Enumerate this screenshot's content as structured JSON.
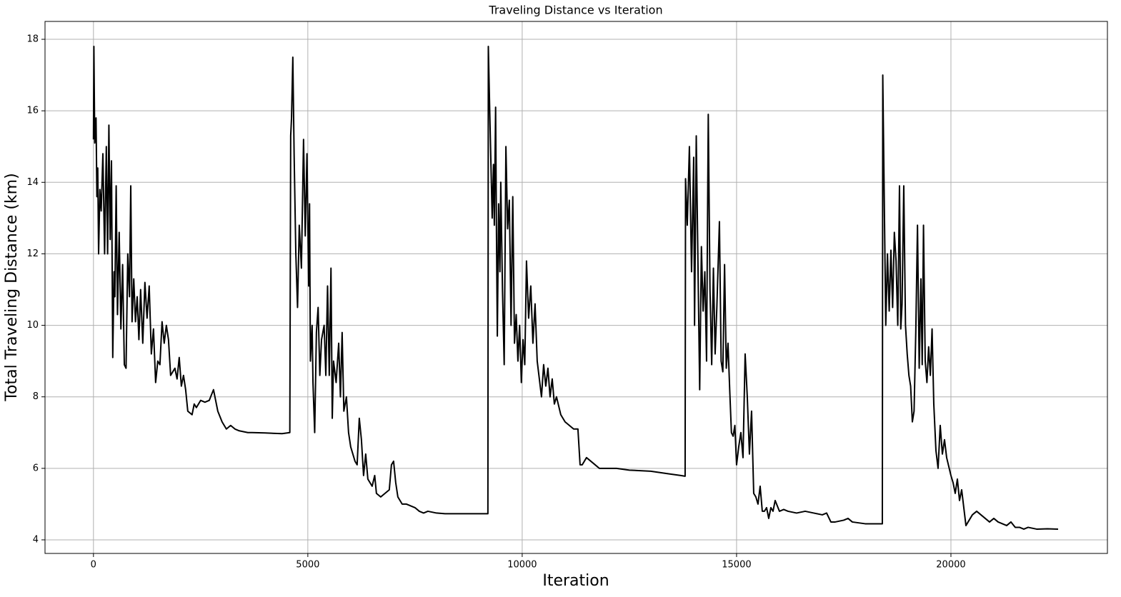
{
  "chart_data": {
    "type": "line",
    "title": "Traveling Distance vs Iteration",
    "xlabel": "Iteration",
    "ylabel": "Total Traveling Distance (km)",
    "xlim": [
      -1130,
      23650
    ],
    "ylim": [
      3.62,
      18.5
    ],
    "xticks": [
      0,
      5000,
      10000,
      15000,
      20000
    ],
    "yticks": [
      4,
      6,
      8,
      10,
      12,
      14,
      16,
      18
    ],
    "grid": true,
    "x": [
      0,
      10,
      30,
      60,
      80,
      100,
      120,
      150,
      180,
      220,
      260,
      300,
      330,
      360,
      390,
      420,
      450,
      480,
      500,
      530,
      560,
      600,
      640,
      680,
      720,
      760,
      800,
      840,
      870,
      900,
      940,
      980,
      1020,
      1060,
      1100,
      1150,
      1200,
      1250,
      1300,
      1350,
      1400,
      1450,
      1500,
      1550,
      1600,
      1650,
      1700,
      1750,
      1800,
      1900,
      1950,
      2000,
      2050,
      2100,
      2150,
      2200,
      2300,
      2350,
      2400,
      2500,
      2600,
      2700,
      2800,
      2850,
      2900,
      3000,
      3100,
      3200,
      3300,
      3400,
      3600,
      3700,
      4000,
      4400,
      4580,
      4600,
      4620,
      4650,
      4680,
      4720,
      4760,
      4800,
      4850,
      4900,
      4940,
      4980,
      5020,
      5040,
      5060,
      5100,
      5120,
      5160,
      5200,
      5240,
      5280,
      5320,
      5380,
      5420,
      5460,
      5500,
      5540,
      5570,
      5600,
      5660,
      5720,
      5760,
      5800,
      5840,
      5900,
      5950,
      6000,
      6050,
      6100,
      6150,
      6200,
      6250,
      6300,
      6350,
      6400,
      6450,
      6500,
      6560,
      6600,
      6700,
      6800,
      6900,
      6950,
      7000,
      7050,
      7100,
      7200,
      7300,
      7400,
      7500,
      7600,
      7700,
      7800,
      8000,
      8200,
      8800,
      9200,
      9210,
      9250,
      9300,
      9330,
      9350,
      9380,
      9400,
      9420,
      9450,
      9480,
      9500,
      9540,
      9580,
      9620,
      9660,
      9700,
      9740,
      9780,
      9820,
      9860,
      9900,
      9940,
      9980,
      10020,
      10060,
      10100,
      10150,
      10200,
      10250,
      10300,
      10350,
      10400,
      10450,
      10500,
      10550,
      10600,
      10650,
      10700,
      10750,
      10800,
      10900,
      11000,
      11100,
      11200,
      11300,
      11350,
      11400,
      11500,
      11600,
      11700,
      11800,
      12000,
      12200,
      12500,
      13000,
      13400,
      13700,
      13800,
      13810,
      13850,
      13900,
      13950,
      14000,
      14020,
      14060,
      14100,
      14140,
      14180,
      14220,
      14260,
      14300,
      14340,
      14380,
      14420,
      14460,
      14500,
      14540,
      14600,
      14640,
      14680,
      14720,
      14760,
      14800,
      14840,
      14880,
      14920,
      14960,
      15000,
      15050,
      15100,
      15150,
      15200,
      15250,
      15300,
      15350,
      15400,
      15450,
      15500,
      15550,
      15600,
      15650,
      15700,
      15750,
      15800,
      15850,
      15900,
      16000,
      16100,
      16200,
      16400,
      16600,
      16800,
      17000,
      17100,
      17200,
      17300,
      17500,
      17600,
      17700,
      18000,
      18400,
      18410,
      18450,
      18480,
      18520,
      18560,
      18600,
      18640,
      18680,
      18720,
      18760,
      18800,
      18830,
      18860,
      18900,
      18940,
      18980,
      19020,
      19060,
      19100,
      19140,
      19180,
      19220,
      19260,
      19300,
      19330,
      19360,
      19400,
      19440,
      19480,
      19520,
      19560,
      19600,
      19650,
      19700,
      19750,
      19800,
      19850,
      19900,
      20000,
      20050,
      20100,
      20150,
      20200,
      20250,
      20300,
      20350,
      20400,
      20500,
      20600,
      20700,
      20800,
      20900,
      21000,
      21100,
      21200,
      21300,
      21400,
      21500,
      21600,
      21700,
      21800,
      22000,
      22250,
      22500
    ],
    "series": [
      {
        "color": "#000000",
        "values": [
          15.2,
          17.8,
          15.1,
          15.8,
          13.6,
          14.4,
          12.0,
          13.8,
          13.2,
          14.8,
          12.0,
          15.0,
          12.0,
          15.6,
          12.4,
          14.6,
          9.1,
          11.5,
          10.8,
          13.9,
          10.3,
          12.6,
          9.9,
          11.7,
          8.9,
          8.8,
          12.0,
          10.8,
          13.9,
          10.1,
          11.3,
          10.1,
          10.8,
          9.6,
          11.0,
          9.5,
          11.2,
          10.2,
          11.1,
          9.2,
          9.9,
          8.4,
          9.0,
          8.9,
          10.1,
          9.5,
          10.0,
          9.6,
          8.6,
          8.8,
          8.5,
          9.1,
          8.3,
          8.6,
          8.2,
          7.6,
          7.5,
          7.8,
          7.7,
          7.9,
          7.85,
          7.9,
          8.2,
          7.9,
          7.6,
          7.3,
          7.1,
          7.2,
          7.1,
          7.05,
          7.0,
          7.0,
          6.99,
          6.97,
          7.0,
          15.3,
          15.8,
          17.5,
          14.8,
          12.0,
          10.5,
          12.8,
          11.6,
          15.2,
          12.5,
          14.8,
          11.1,
          13.4,
          9.0,
          10.0,
          8.4,
          7.0,
          9.8,
          10.5,
          8.6,
          9.6,
          10.0,
          8.6,
          11.1,
          8.6,
          11.6,
          7.4,
          9.0,
          8.4,
          9.5,
          8.0,
          9.8,
          7.6,
          8.0,
          7.0,
          6.6,
          6.4,
          6.2,
          6.1,
          7.4,
          6.8,
          5.8,
          6.4,
          5.7,
          5.6,
          5.5,
          5.8,
          5.3,
          5.2,
          5.3,
          5.4,
          6.1,
          6.2,
          5.6,
          5.2,
          5.0,
          5.0,
          4.95,
          4.9,
          4.8,
          4.75,
          4.8,
          4.75,
          4.73,
          4.73,
          4.73,
          17.8,
          15.6,
          13.0,
          14.5,
          12.8,
          16.1,
          12.6,
          9.7,
          13.4,
          11.5,
          14.0,
          11.0,
          8.9,
          15.0,
          12.7,
          13.5,
          10.0,
          13.6,
          9.5,
          10.3,
          9.0,
          10.0,
          8.4,
          9.6,
          8.9,
          11.8,
          10.2,
          11.1,
          9.5,
          10.6,
          9.0,
          8.5,
          8.0,
          8.9,
          8.3,
          8.8,
          8.0,
          8.5,
          7.8,
          8.0,
          7.5,
          7.3,
          7.2,
          7.1,
          7.1,
          6.1,
          6.1,
          6.3,
          6.2,
          6.1,
          6.0,
          6.0,
          6.0,
          5.95,
          5.92,
          5.85,
          5.8,
          5.78,
          14.1,
          12.8,
          15.0,
          11.5,
          14.7,
          10.0,
          15.3,
          11.7,
          8.2,
          12.2,
          10.4,
          11.5,
          9.0,
          15.9,
          11.0,
          8.9,
          11.6,
          9.2,
          10.5,
          12.9,
          9.0,
          8.7,
          11.7,
          8.8,
          9.5,
          8.2,
          7.0,
          6.9,
          7.2,
          6.1,
          6.6,
          7.0,
          6.3,
          9.2,
          8.0,
          6.4,
          7.6,
          5.3,
          5.2,
          5.0,
          5.5,
          4.8,
          4.8,
          4.9,
          4.6,
          4.9,
          4.8,
          5.1,
          4.8,
          4.85,
          4.8,
          4.75,
          4.8,
          4.75,
          4.7,
          4.75,
          4.5,
          4.5,
          4.55,
          4.6,
          4.5,
          4.45,
          4.45,
          17.0,
          13.0,
          10.0,
          12.0,
          10.4,
          12.1,
          10.5,
          12.6,
          11.8,
          10.0,
          13.9,
          9.9,
          10.6,
          13.9,
          10.0,
          9.2,
          8.6,
          8.3,
          7.3,
          7.6,
          9.8,
          12.8,
          8.8,
          11.3,
          8.9,
          12.8,
          9.0,
          8.4,
          9.4,
          8.6,
          9.9,
          7.8,
          6.5,
          6.0,
          7.2,
          6.4,
          6.8,
          6.3,
          5.8,
          5.6,
          5.3,
          5.7,
          5.1,
          5.4,
          4.9,
          4.4,
          4.5,
          4.7,
          4.8,
          4.7,
          4.6,
          4.5,
          4.6,
          4.5,
          4.45,
          4.4,
          4.5,
          4.35,
          4.35,
          4.3,
          4.35,
          4.3,
          4.31,
          4.3
        ]
      }
    ]
  }
}
